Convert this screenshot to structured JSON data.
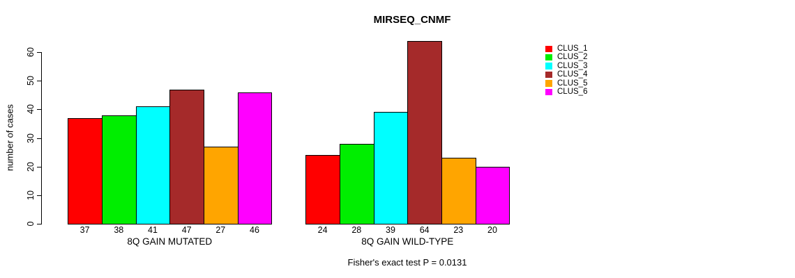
{
  "chart_data": {
    "type": "bar",
    "title": "MIRSEQ_CNMF",
    "ylabel": "number of cases",
    "xlabel": "",
    "yticks": [
      0,
      10,
      20,
      30,
      40,
      50,
      60
    ],
    "ylim": [
      0,
      66
    ],
    "grid": false,
    "legend_position": "right-outside",
    "bar_value_labels_shown": true,
    "groups": [
      "8Q GAIN MUTATED",
      "8Q GAIN WILD-TYPE"
    ],
    "series": [
      {
        "name": "CLUS_1",
        "color": "#ff0000",
        "values": [
          37,
          24
        ]
      },
      {
        "name": "CLUS_2",
        "color": "#00ee00",
        "values": [
          38,
          28
        ]
      },
      {
        "name": "CLUS_3",
        "color": "#00ffff",
        "values": [
          41,
          39
        ]
      },
      {
        "name": "CLUS_4",
        "color": "#a52a2a",
        "values": [
          47,
          64
        ]
      },
      {
        "name": "CLUS_5",
        "color": "#ffa500",
        "values": [
          27,
          23
        ]
      },
      {
        "name": "CLUS_6",
        "color": "#ff00ff",
        "values": [
          46,
          20
        ]
      }
    ],
    "annotation": "Fisher's exact test P = 0.0131"
  }
}
